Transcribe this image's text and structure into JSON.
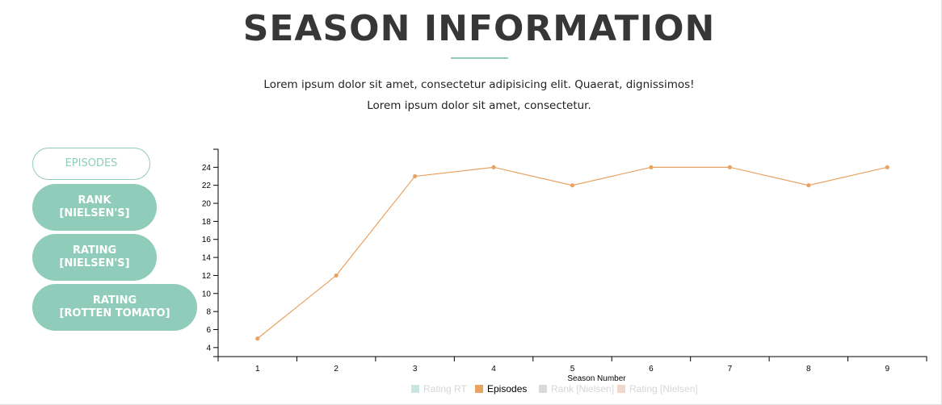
{
  "page": {
    "title": "SEASON INFORMATION",
    "description_line1": "Lorem ipsum dolor sit amet, consectetur adipisicing elit. Quaerat, dignissimos!",
    "description_line2": "Lorem ipsum dolor sit amet, consectetur."
  },
  "buttons": [
    {
      "line1": "EPISODES",
      "line2": ""
    },
    {
      "line1": "RANK",
      "line2": "[NIELSEN'S]"
    },
    {
      "line1": "RATING",
      "line2": "[NIELSEN'S]"
    },
    {
      "line1": "RATING",
      "line2": "[ROTTEN TOMATO]"
    }
  ],
  "colors": {
    "accent": "#8fccb9",
    "episodes": "#e8a363",
    "rating_rt": "#c9e6e0",
    "rank_nielsen": "#d9d9d9",
    "rating_nielsen": "#f0d9cc"
  },
  "chart_data": {
    "type": "line",
    "xlabel": "Season Number",
    "ylabel": "",
    "x": [
      1,
      2,
      3,
      4,
      5,
      6,
      7,
      8,
      9
    ],
    "ylim": [
      3,
      26
    ],
    "yticks": [
      4,
      6,
      8,
      10,
      12,
      14,
      16,
      18,
      20,
      22,
      24
    ],
    "series": [
      {
        "name": "Episodes",
        "values": [
          5,
          12,
          23,
          24,
          22,
          24,
          24,
          22,
          24
        ]
      }
    ],
    "legend": [
      {
        "name": "Rating RT",
        "active": false
      },
      {
        "name": "Episodes",
        "active": true
      },
      {
        "name": "Rank [Nielsen]",
        "active": false
      },
      {
        "name": "Rating [Nielsen]",
        "active": false
      }
    ],
    "grid": false,
    "legend_position": "bottom-center"
  }
}
